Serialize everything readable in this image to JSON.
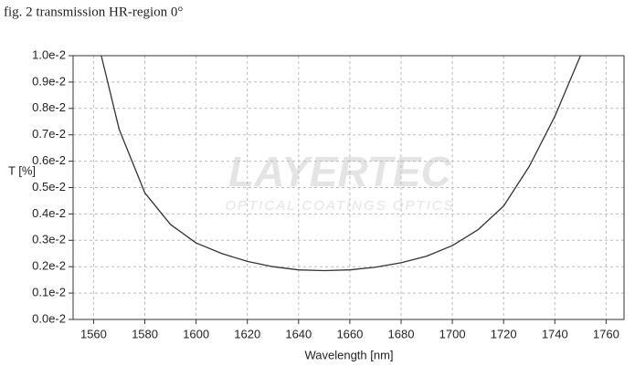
{
  "chart_data": {
    "type": "line",
    "title": "fig. 2 transmission HR-region  0°",
    "xlabel": "Wavelength [nm]",
    "ylabel": "T [%]",
    "watermark": "LAYERTEC",
    "watermark_sub": "OPTICAL COATINGS OPTICS",
    "x": [
      1563,
      1570,
      1580,
      1590,
      1600,
      1610,
      1620,
      1630,
      1640,
      1650,
      1660,
      1670,
      1680,
      1690,
      1700,
      1710,
      1720,
      1730,
      1740,
      1750
    ],
    "series": [
      {
        "color": "#333333",
        "values": [
          0.01,
          0.0072,
          0.0048,
          0.0036,
          0.0029,
          0.0025,
          0.0022,
          0.002,
          0.00188,
          0.00185,
          0.00188,
          0.00198,
          0.00215,
          0.0024,
          0.0028,
          0.0034,
          0.0043,
          0.0058,
          0.0077,
          0.01
        ]
      }
    ],
    "xlim": [
      1552,
      1767
    ],
    "ylim": [
      0,
      0.01
    ],
    "xticks": [
      1560,
      1580,
      1600,
      1620,
      1640,
      1660,
      1680,
      1700,
      1720,
      1740,
      1760
    ],
    "yticks": [
      {
        "value": 0,
        "label": "0.0e-2"
      },
      {
        "value": 0.001,
        "label": "0.1e-2"
      },
      {
        "value": 0.002,
        "label": "0.2e-2"
      },
      {
        "value": 0.003,
        "label": "0.3e-2"
      },
      {
        "value": 0.004,
        "label": "0.4e-2"
      },
      {
        "value": 0.005,
        "label": "0.5e-2"
      },
      {
        "value": 0.006,
        "label": "0.6e-2"
      },
      {
        "value": 0.007,
        "label": "0.7e-2"
      },
      {
        "value": 0.008,
        "label": "0.8e-2"
      },
      {
        "value": 0.009,
        "label": "0.9e-2"
      },
      {
        "value": 0.01,
        "label": "1.0e-2"
      }
    ],
    "grid": true
  }
}
